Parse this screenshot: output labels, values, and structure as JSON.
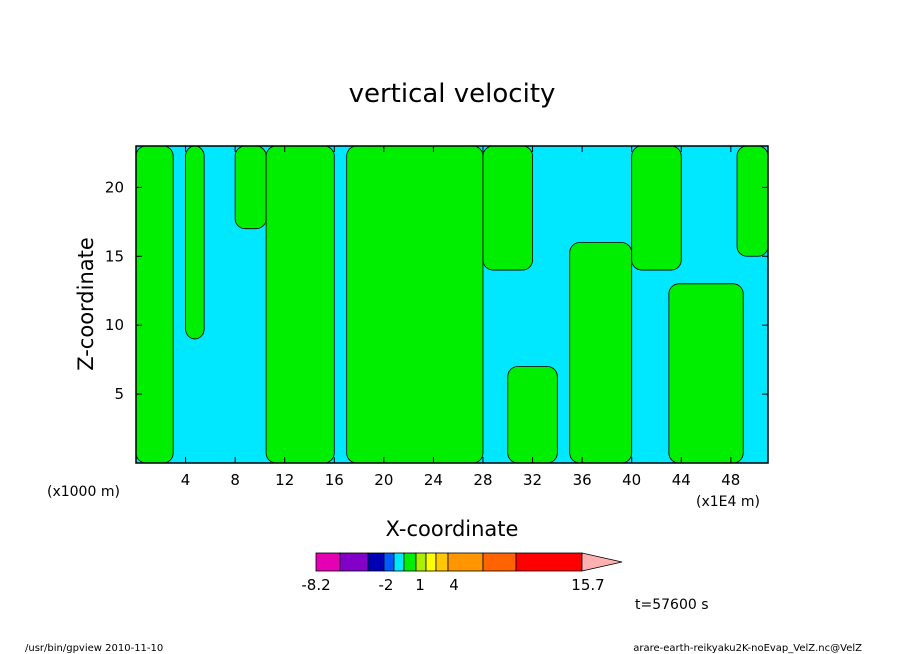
{
  "chart_data": {
    "type": "heatmap",
    "title": "vertical velocity",
    "xlabel": "X-coordinate",
    "ylabel": "Z-coordinate",
    "x_unit_left": "(x1000 m)",
    "x_unit_right": "(x1E4 m)",
    "xlim": [
      0,
      51
    ],
    "ylim": [
      0,
      23
    ],
    "x_ticks": [
      4,
      8,
      12,
      16,
      20,
      24,
      28,
      32,
      36,
      40,
      44,
      48
    ],
    "y_ticks": [
      5,
      10,
      15,
      20
    ],
    "field_colors": {
      "negative": "#00e8ff",
      "positive": "#00ee00"
    },
    "green_regions": [
      {
        "x": [
          0,
          3
        ],
        "z": [
          0,
          23
        ]
      },
      {
        "x": [
          4,
          5.5
        ],
        "z": [
          9,
          23
        ]
      },
      {
        "x": [
          8,
          10.5
        ],
        "z": [
          17,
          23
        ]
      },
      {
        "x": [
          10.5,
          16
        ],
        "z": [
          0,
          23
        ]
      },
      {
        "x": [
          17,
          28
        ],
        "z": [
          0,
          23
        ]
      },
      {
        "x": [
          28,
          32
        ],
        "z": [
          14,
          23
        ]
      },
      {
        "x": [
          30,
          34
        ],
        "z": [
          0,
          7
        ]
      },
      {
        "x": [
          35,
          40
        ],
        "z": [
          0,
          16
        ]
      },
      {
        "x": [
          40,
          44
        ],
        "z": [
          14,
          23
        ]
      },
      {
        "x": [
          43,
          49
        ],
        "z": [
          0,
          13
        ]
      },
      {
        "x": [
          48.5,
          51
        ],
        "z": [
          15,
          23
        ]
      }
    ],
    "colorbar": {
      "labels": [
        "-8.2",
        "-2",
        "1",
        "4",
        "15.7"
      ],
      "segments": [
        "#e600b4",
        "#8200c8",
        "#0000b4",
        "#005aff",
        "#00e8ff",
        "#00ee00",
        "#aaf000",
        "#ffff00",
        "#ffc800",
        "#ff9600",
        "#ff6400",
        "#ff0000",
        "#ff8080"
      ],
      "tip_color": "#ffb0b0"
    },
    "time_label": "t=57600 s"
  },
  "footer": {
    "left": "/usr/bin/gpview   2010-11-10",
    "right": "arare-earth-reikyaku2K-noEvap_VelZ.nc@VelZ"
  }
}
